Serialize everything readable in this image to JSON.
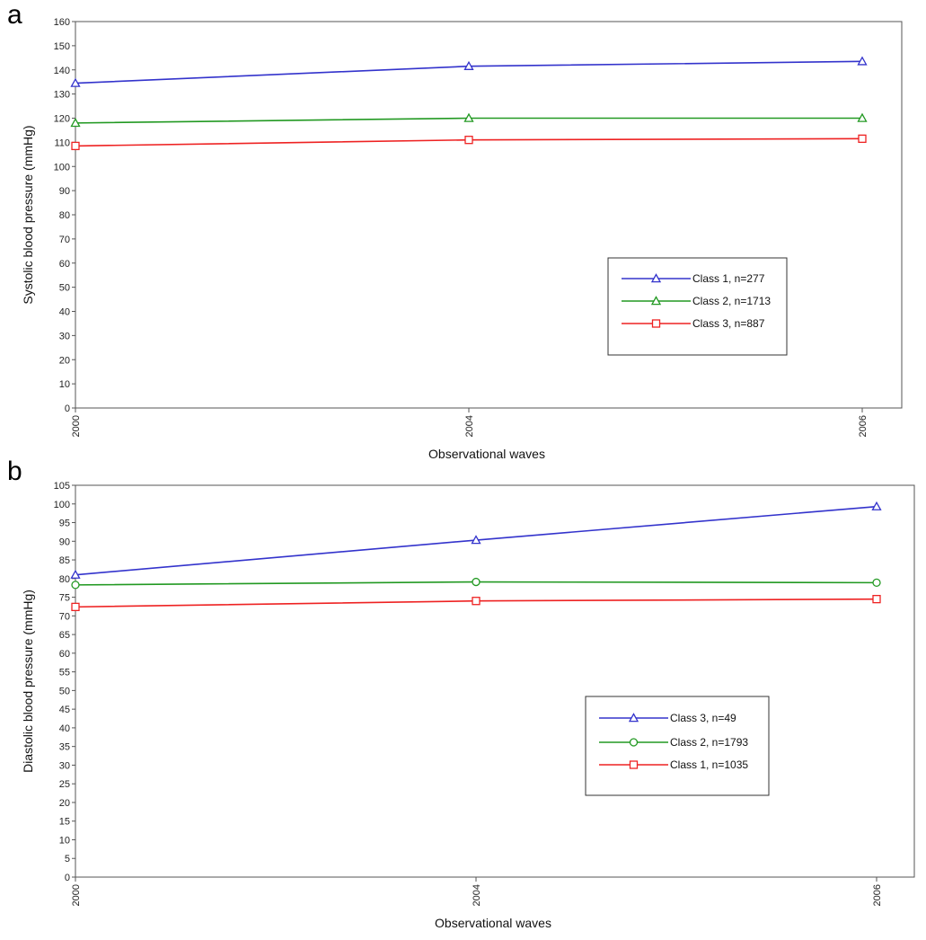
{
  "chart_data": [
    {
      "panel_label": "a",
      "type": "line",
      "xlabel": "Observational waves",
      "ylabel": "Systolic blood pressure (mmHg)",
      "x": [
        "2000",
        "2004",
        "2006"
      ],
      "x_values": [
        2000,
        2004,
        2006
      ],
      "ylim": [
        0,
        160
      ],
      "ystep": 10,
      "grid": false,
      "legend_position": "center-right",
      "series": [
        {
          "name": "Class 1, n=277",
          "color": "#3333cc",
          "marker": "triangle",
          "values": [
            134.5,
            141.5,
            143.5
          ]
        },
        {
          "name": "Class 2, n=1713",
          "color": "#229922",
          "marker": "triangle",
          "values": [
            118,
            120,
            120
          ]
        },
        {
          "name": "Class 3, n=887",
          "color": "#ee2222",
          "marker": "square",
          "values": [
            108.5,
            111,
            111.5
          ]
        }
      ]
    },
    {
      "panel_label": "b",
      "type": "line",
      "xlabel": "Observational waves",
      "ylabel": "Diastolic blood pressure (mmHg)",
      "x": [
        "2000",
        "2004",
        "2006"
      ],
      "x_values": [
        2000,
        2004,
        2006
      ],
      "ylim": [
        0,
        105
      ],
      "ystep": 5,
      "grid": false,
      "legend_position": "center-right",
      "series": [
        {
          "name": "Class 3, n=49",
          "color": "#3333cc",
          "marker": "triangle",
          "values": [
            81,
            90.3,
            99.3
          ]
        },
        {
          "name": "Class 2, n=1793",
          "color": "#229922",
          "marker": "circle",
          "values": [
            78.3,
            79.1,
            78.9
          ]
        },
        {
          "name": "Class 1, n=1035",
          "color": "#ee2222",
          "marker": "square",
          "values": [
            72.4,
            74,
            74.5
          ]
        }
      ]
    }
  ]
}
